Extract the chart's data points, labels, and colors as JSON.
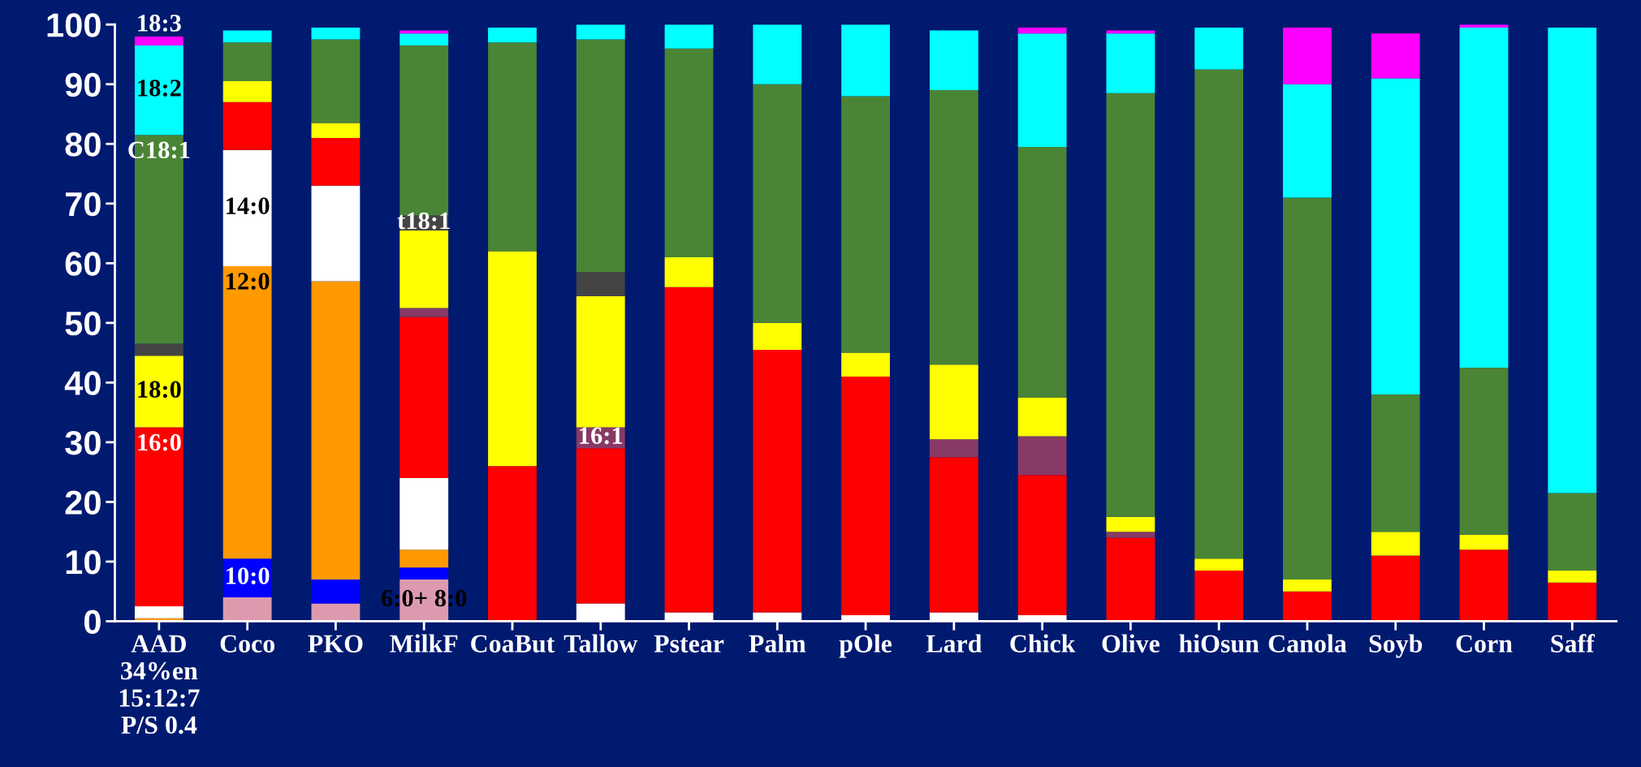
{
  "chart_data": {
    "type": "bar",
    "stacked": true,
    "categories": [
      "AAD\n34%en\n15:12:7\nP/S 0.4",
      "Coco",
      "PKO",
      "MilkF",
      "CoaBut",
      "Tallow",
      "Pstear",
      "Palm",
      "pOle",
      "Lard",
      "Chick",
      "Olive",
      "hiOsun",
      "Canola",
      "Soyb",
      "Corn",
      "Saff"
    ],
    "series": [
      {
        "color": "#dd9aae",
        "values": [
          0,
          4,
          3,
          7,
          0,
          0,
          0,
          0,
          0,
          0,
          0,
          0,
          0,
          0,
          0,
          0,
          0
        ]
      },
      {
        "color": "#0000ff",
        "values": [
          0,
          6.5,
          4,
          2,
          0,
          0,
          0,
          0,
          0,
          0,
          0,
          0,
          0,
          0,
          0,
          0,
          0
        ]
      },
      {
        "color": "#ff9900",
        "values": [
          0.5,
          49,
          50,
          3,
          0,
          0,
          0,
          0,
          0,
          0,
          0,
          0,
          0,
          0,
          0,
          0,
          0
        ]
      },
      {
        "color": "#ffffff",
        "values": [
          2,
          19.5,
          16,
          12,
          0,
          3,
          1.5,
          1.5,
          1,
          1.5,
          1,
          0,
          0,
          0,
          0,
          0,
          0
        ]
      },
      {
        "color": "#ff0000",
        "values": [
          30,
          8,
          8,
          27,
          26,
          26,
          54.5,
          44,
          40,
          26,
          23.5,
          14,
          8.5,
          5,
          11,
          12,
          6.5
        ]
      },
      {
        "color": "#883a66",
        "values": [
          0,
          0,
          0,
          1.5,
          0,
          3.5,
          0,
          0,
          0,
          3,
          6.5,
          1,
          0,
          0,
          0,
          0,
          0
        ]
      },
      {
        "color": "#ffff00",
        "values": [
          12,
          3.5,
          2.5,
          13,
          36,
          22,
          5,
          4.5,
          4,
          12.5,
          6.5,
          2.5,
          2,
          2,
          4,
          2.5,
          2
        ]
      },
      {
        "color": "#444444",
        "values": [
          2,
          0,
          0,
          2.5,
          0,
          4,
          0,
          0,
          0,
          0,
          0,
          0,
          0,
          0,
          0,
          0,
          0
        ]
      },
      {
        "color": "#4a8536",
        "values": [
          35,
          6.5,
          14,
          28.5,
          35,
          39,
          35,
          40,
          43,
          46,
          42,
          71,
          82,
          64,
          23,
          28,
          13
        ]
      },
      {
        "color": "#00ffff",
        "values": [
          15,
          2,
          2,
          2,
          2.5,
          2.5,
          4,
          10,
          12,
          10,
          19,
          10,
          7,
          19,
          53,
          57,
          78
        ]
      },
      {
        "color": "#ff00ff",
        "values": [
          1.5,
          0,
          0,
          0.5,
          0,
          0,
          0,
          0,
          0,
          0,
          1,
          0.5,
          0,
          9.5,
          7.5,
          0.5,
          0
        ]
      }
    ],
    "annotations": [
      {
        "text": "18:3",
        "x": "AAD\n34%en\n15:12:7\nP/S 0.4",
        "y": 98
      },
      {
        "text": "18:2",
        "x": "AAD\n34%en\n15:12:7\nP/S 0.4",
        "y": 96.5
      },
      {
        "text": "C18:1",
        "x": "AAD\n34%en\n15:12:7\nP/S 0.4",
        "y": 81.5
      },
      {
        "text": "18:0",
        "x": "AAD\n34%en\n15:12:7\nP/S 0.4",
        "y": 44.5
      },
      {
        "text": "16:0",
        "x": "AAD\n34%en\n15:12:7\nP/S 0.4",
        "y": 32.5
      },
      {
        "text": "14:0",
        "x": "Coco",
        "y": 79
      },
      {
        "text": "12:0",
        "x": "Coco",
        "y": 59.5
      },
      {
        "text": "10:0",
        "x": "Coco",
        "y": 10.5
      },
      {
        "text": "t18:1",
        "x": "MilkF",
        "y": 68
      },
      {
        "text": "16:1",
        "x": "Tallow",
        "y": 32.5
      },
      {
        "text": "6:0+ 8:0",
        "x": "MilkF",
        "y": 7
      }
    ],
    "ylim": [
      0,
      100
    ],
    "yticks": [
      0,
      10,
      20,
      30,
      40,
      50,
      60,
      70,
      80,
      90,
      100
    ],
    "grid": false
  }
}
